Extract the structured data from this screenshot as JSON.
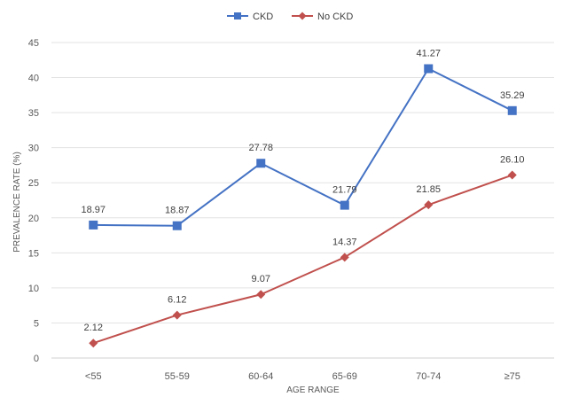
{
  "chart_data": {
    "type": "line",
    "categories": [
      "<55",
      "55-59",
      "60-64",
      "65-69",
      "70-74",
      "≥75"
    ],
    "series": [
      {
        "name": "CKD",
        "values": [
          18.97,
          18.87,
          27.78,
          21.79,
          41.27,
          35.29
        ],
        "labels": [
          "18.97",
          "18.87",
          "27.78",
          "21.79",
          "41.27",
          "35.29"
        ],
        "color": "#4472C4",
        "marker": "square"
      },
      {
        "name": "No CKD",
        "values": [
          2.12,
          6.12,
          9.07,
          14.37,
          21.85,
          26.1
        ],
        "labels": [
          "2.12",
          "6.12",
          "9.07",
          "14.37",
          "21.85",
          "26.10"
        ],
        "color": "#C0504D",
        "marker": "diamond"
      }
    ],
    "title": "",
    "xlabel": "AGE RANGE",
    "ylabel": "PREVALENCE RATE (%)",
    "ylim": [
      0,
      45
    ],
    "yticks": [
      "0",
      "5",
      "10",
      "15",
      "20",
      "25",
      "30",
      "35",
      "40",
      "45"
    ],
    "grid": true,
    "legend_position": "top-center"
  }
}
